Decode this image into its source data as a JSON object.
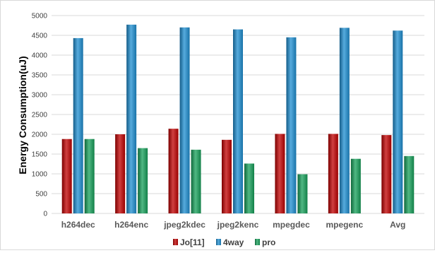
{
  "chart_data": {
    "type": "bar",
    "title": "",
    "xlabel": "",
    "ylabel": "Energy Consumption(uJ)",
    "ylim": [
      0,
      5000
    ],
    "yticks": [
      0,
      500,
      1000,
      1500,
      2000,
      2500,
      3000,
      3500,
      4000,
      4500,
      5000
    ],
    "grid": true,
    "legend_position": "bottom",
    "categories": [
      "h264dec",
      "h264enc",
      "jpeg2kdec",
      "jpeg2kenc",
      "mpegdec",
      "mpegenc",
      "Avg"
    ],
    "series": [
      {
        "name": "Jo[11]",
        "color": "#c00000",
        "values": [
          1880,
          2000,
          2140,
          1860,
          2010,
          2010,
          1980
        ]
      },
      {
        "name": "4way",
        "color": "#1e8fd2",
        "values": [
          4430,
          4770,
          4700,
          4650,
          4450,
          4690,
          4620
        ]
      },
      {
        "name": "pro",
        "color": "#16a05a",
        "values": [
          1880,
          1650,
          1610,
          1260,
          990,
          1380,
          1450
        ]
      }
    ]
  }
}
